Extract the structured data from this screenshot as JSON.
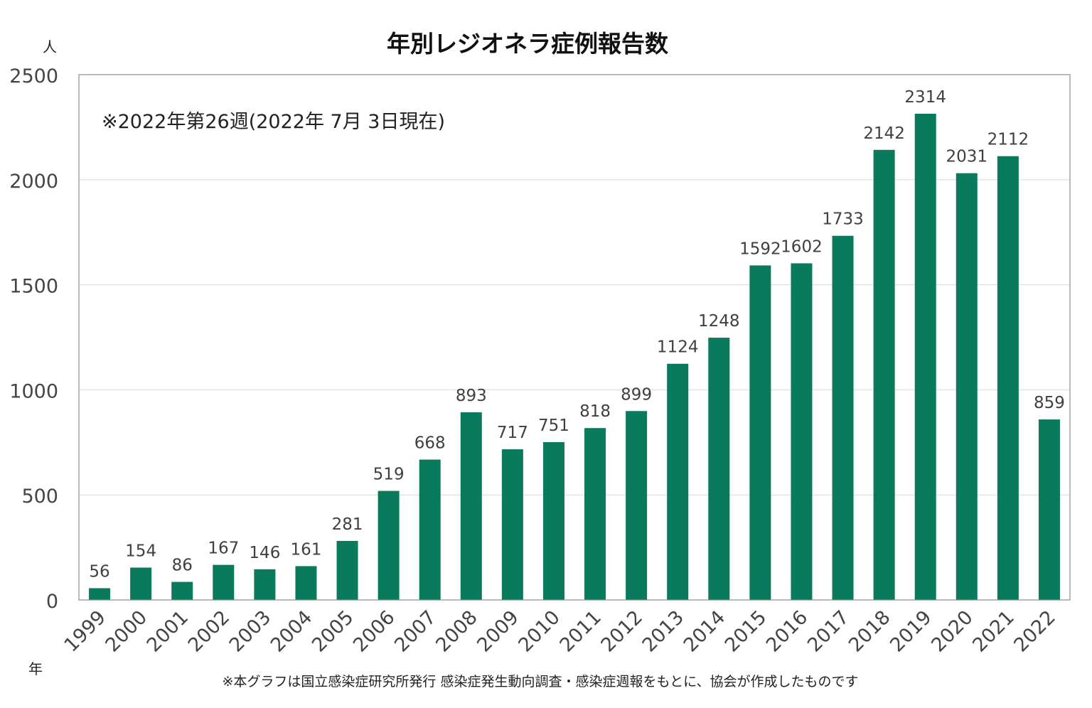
{
  "chart_data": {
    "type": "bar",
    "title": "年別レジオネラ症例報告数",
    "annotation": "※2022年第26週(2022年 7月 3日現在)",
    "ylabel": "人",
    "xlabel": "年",
    "footnote": "※本グラフは国立感染症研究所発行 感染症発生動向調査・感染症週報をもとに、協会が作成したものです",
    "categories": [
      "1999",
      "2000",
      "2001",
      "2002",
      "2003",
      "2004",
      "2005",
      "2006",
      "2007",
      "2008",
      "2009",
      "2010",
      "2011",
      "2012",
      "2013",
      "2014",
      "2015",
      "2016",
      "2017",
      "2018",
      "2019",
      "2020",
      "2021",
      "2022"
    ],
    "values": [
      56,
      154,
      86,
      167,
      146,
      161,
      281,
      519,
      668,
      893,
      717,
      751,
      818,
      899,
      1124,
      1248,
      1592,
      1602,
      1733,
      2142,
      2314,
      2031,
      2112,
      859
    ],
    "ylim": [
      0,
      2500
    ],
    "yticks": [
      0,
      500,
      1000,
      1500,
      2000,
      2500
    ],
    "grid": true,
    "legend": "none",
    "bar_color": "#0a7a5c",
    "grid_color": "#d9d9d9",
    "axis_color": "#8c8c8c"
  }
}
